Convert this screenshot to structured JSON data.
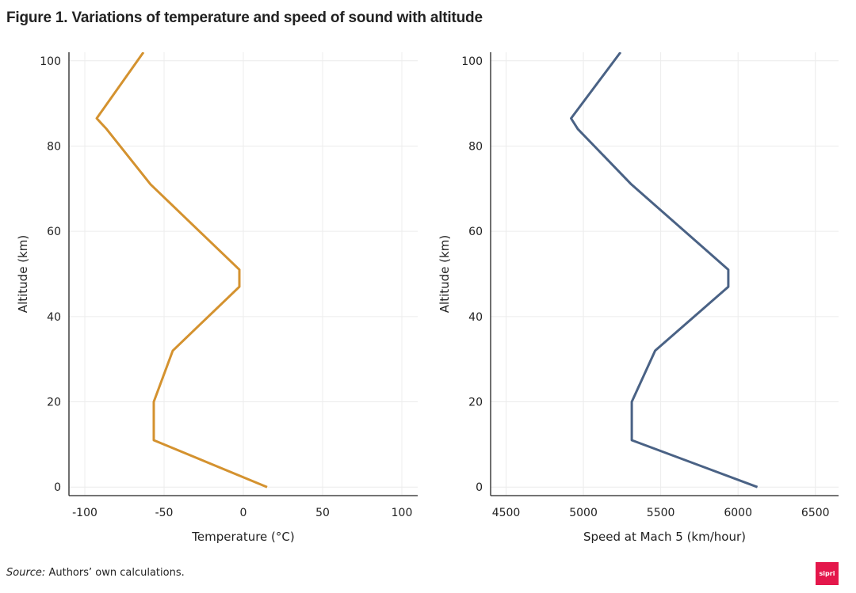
{
  "figure": {
    "title": "Figure 1. Variations of temperature and speed of sound with altitude",
    "source_label": "Source:",
    "source_text": " Authors’ own calculations.",
    "logo_text": "sipri"
  },
  "colors": {
    "temperature": "#d4922f",
    "speed": "#4a6285",
    "grid": "#ececec",
    "axis": "#222222"
  },
  "chart_data": [
    {
      "type": "line",
      "name": "temperature-chart",
      "xlabel": "Temperature (°C)",
      "ylabel": "Altitude (km)",
      "xlim": [
        -110,
        110
      ],
      "ylim": [
        -2,
        102
      ],
      "xticks": [
        -100,
        -50,
        0,
        50,
        100
      ],
      "yticks": [
        0,
        20,
        40,
        60,
        80,
        100
      ],
      "grid": true,
      "series": [
        {
          "name": "Temperature",
          "x": [
            15,
            -56.5,
            -56.5,
            -44.5,
            -2.5,
            -2.5,
            -58.5,
            -86.3,
            -92.5,
            -63
          ],
          "y": [
            0,
            11,
            20,
            32,
            47,
            51,
            71,
            84,
            86.5,
            102
          ]
        }
      ]
    },
    {
      "type": "line",
      "name": "speed-chart",
      "xlabel": "Speed at Mach 5 (km/hour)",
      "ylabel": "Altitude (km)",
      "xlim": [
        4400,
        6650
      ],
      "ylim": [
        -2,
        102
      ],
      "xticks": [
        4500,
        5000,
        5500,
        6000,
        6500
      ],
      "yticks": [
        0,
        20,
        40,
        60,
        80,
        100
      ],
      "grid": true,
      "series": [
        {
          "name": "Speed at Mach 5",
          "x": [
            6125,
            5313,
            5313,
            5464,
            5937,
            5937,
            5310,
            4964,
            4920,
            5240
          ],
          "y": [
            0,
            11,
            20,
            32,
            47,
            51,
            71,
            84,
            86.5,
            102
          ]
        }
      ]
    }
  ]
}
